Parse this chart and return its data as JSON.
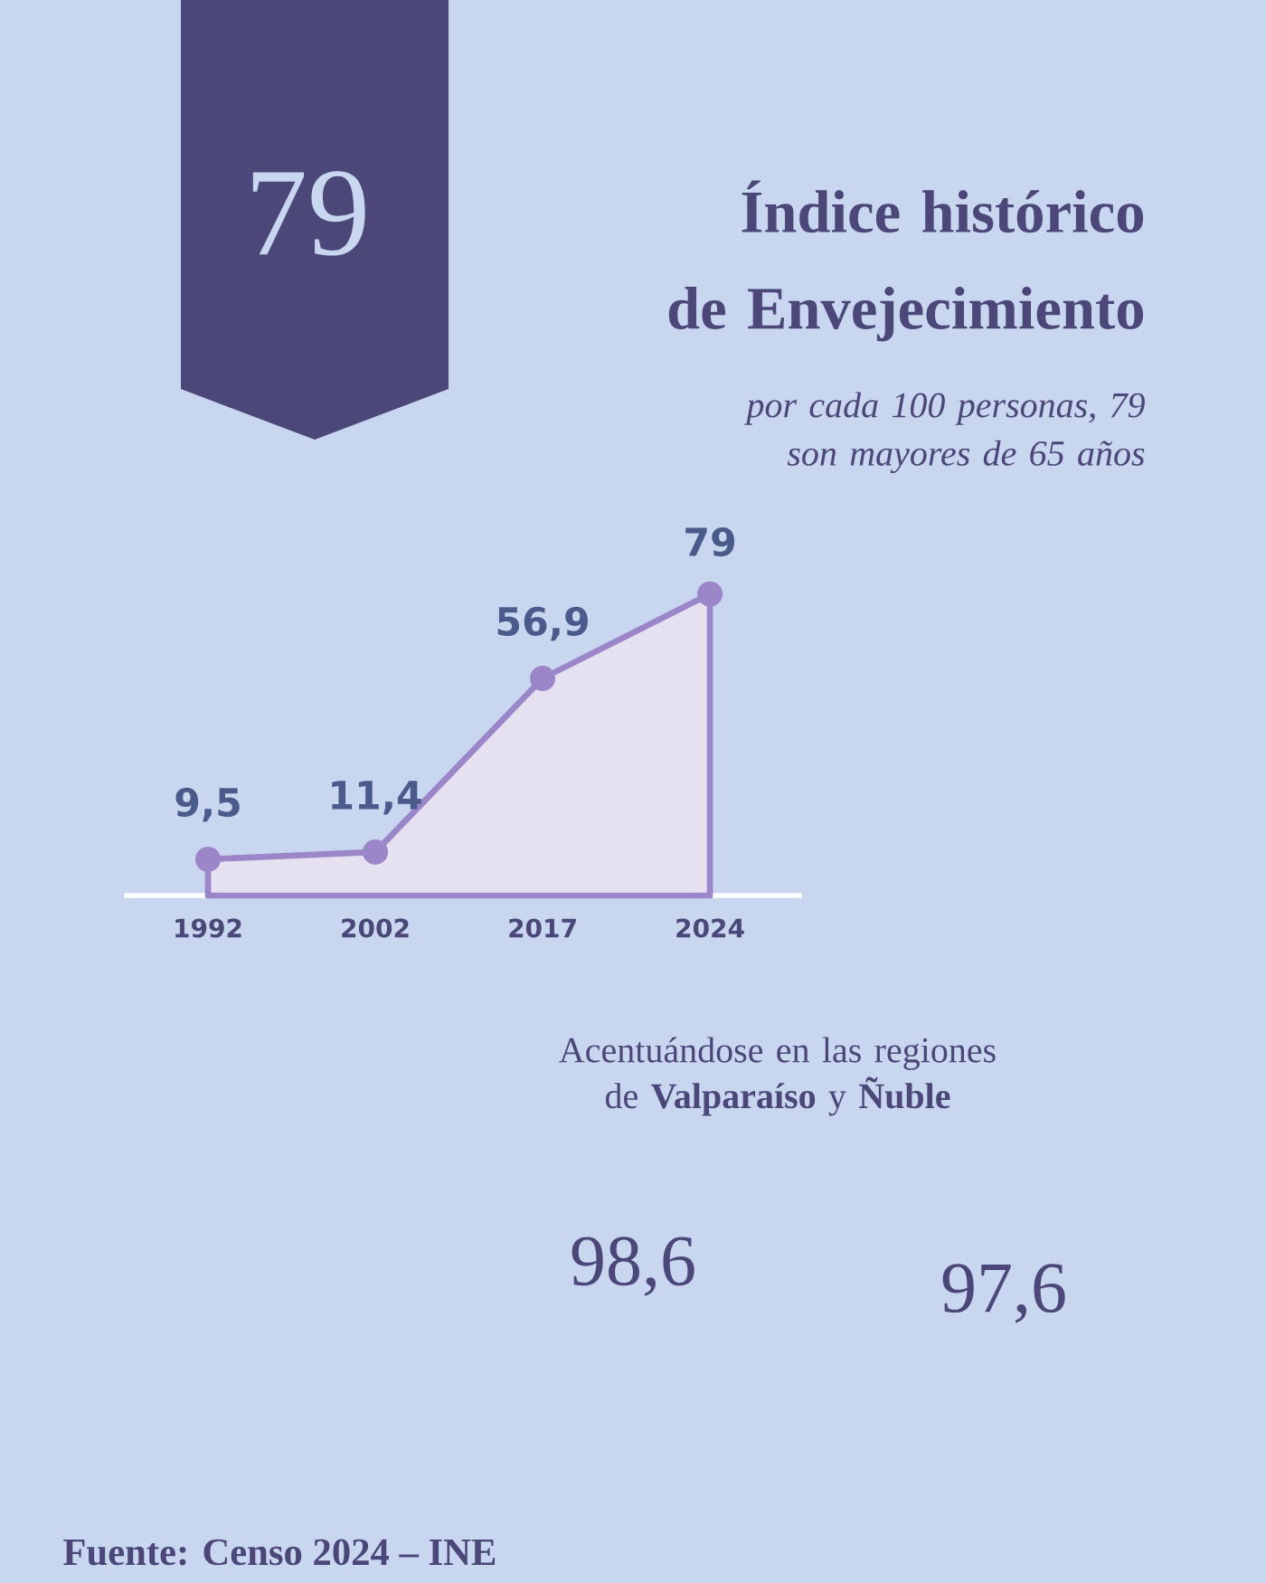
{
  "chart_data": {
    "type": "area",
    "title": "Índice histórico de Envejecimiento",
    "subtitle": "por cada 100 personas, 79 son mayores de 65 años",
    "categories": [
      "1992",
      "2002",
      "2017",
      "2024"
    ],
    "series": [
      {
        "color": "#9a86c8",
        "values": [
          9.5,
          11.4,
          56.9,
          79
        ],
        "value_labels": [
          "9,5",
          "11,4",
          "56,9",
          "79"
        ]
      }
    ],
    "marker": "circle",
    "annotations": [
      "79",
      "Acentuándose en las regiones de **Valparaíso** y **Ñuble**",
      "98,6",
      "97,6",
      "Fuente:  Censo 2024 – INE"
    ]
  }
}
